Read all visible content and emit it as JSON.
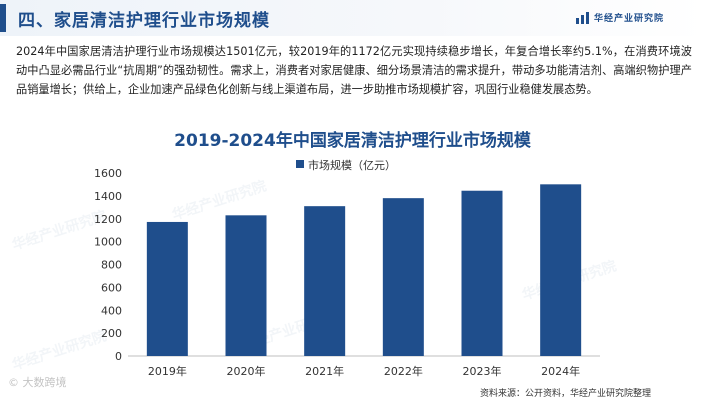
{
  "header": {
    "section_title": "四、家居清洁护理行业市场规模",
    "brand": "华经产业研究院"
  },
  "paragraph": "2024年中国家居清洁护理行业市场规模达1501亿元，较2019年的1172亿元实现持续稳步增长，年复合增长率约5.1%，在消费环境波动中凸显必需品行业“抗周期”的强劲韧性。需求上，消费者对家居健康、细分场景清洁的需求提升，带动多功能清洁剂、高端织物护理产品销量增长；供给上，企业加速产品绿色化创新与线上渠道布局，进一步助推市场规模扩容，巩固行业稳健发展态势。",
  "chart_data": {
    "type": "bar",
    "title": "2019-2024年中国家居清洁护理行业市场规模",
    "categories": [
      "2019年",
      "2020年",
      "2021年",
      "2022年",
      "2023年",
      "2024年"
    ],
    "series": [
      {
        "name": "市场规模（亿元）",
        "values": [
          1172,
          1230,
          1310,
          1380,
          1445,
          1501
        ],
        "color": "#1f4e8c"
      }
    ],
    "ylim": [
      0,
      1600
    ],
    "yticks": [
      0,
      200,
      400,
      600,
      800,
      1000,
      1200,
      1400,
      1600
    ],
    "grid": false,
    "legend": "top-center"
  },
  "watermark": "华经产业研究院",
  "source": "资料来源：公开资料，华经产业研究院整理",
  "corner_mark": "© 大数跨境"
}
